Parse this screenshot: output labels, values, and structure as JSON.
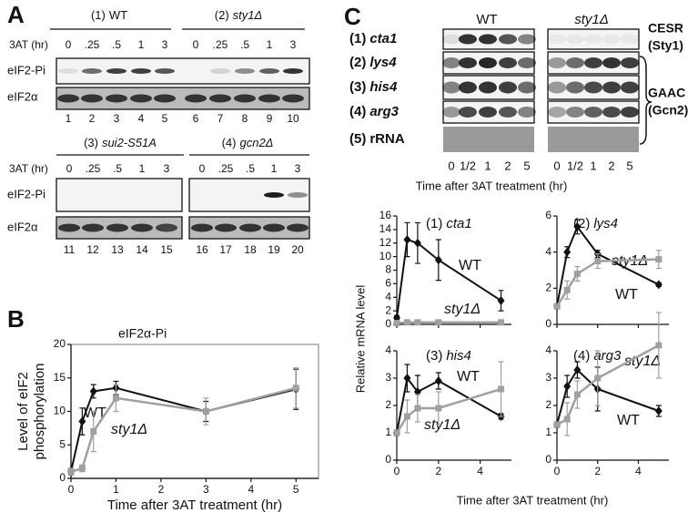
{
  "panel_a": {
    "label": "A",
    "time_label": "3AT (hr)",
    "times": [
      "0",
      ".25",
      ".5",
      "1",
      "3"
    ],
    "rows": [
      "eIF2-Pi",
      "eIF2α"
    ],
    "groups": [
      {
        "num": "(1)",
        "name": "WT"
      },
      {
        "num": "(2)",
        "name": "sty1Δ"
      },
      {
        "num": "(3)",
        "name": "sui2-S51A"
      },
      {
        "num": "(4)",
        "name": "gcn2Δ"
      }
    ],
    "lanes_top": [
      1,
      2,
      3,
      4,
      5,
      6,
      7,
      8,
      9,
      10
    ],
    "lanes_bottom": [
      11,
      12,
      13,
      14,
      15,
      16,
      17,
      18,
      19,
      20
    ]
  },
  "panel_b": {
    "label": "B"
  },
  "panel_c": {
    "label": "C",
    "strains": [
      "WT",
      "sty1Δ"
    ],
    "genes": [
      {
        "num": "(1)",
        "name": "cta1"
      },
      {
        "num": "(2)",
        "name": "lys4"
      },
      {
        "num": "(3)",
        "name": "his4"
      },
      {
        "num": "(4)",
        "name": "arg3"
      },
      {
        "num": "(5)",
        "name": "rRNA"
      }
    ],
    "pathways": [
      [
        "CESR",
        "(Sty1)"
      ],
      [
        "GAAC",
        "(Gcn2)"
      ]
    ],
    "times": [
      "0",
      "1/2",
      "1",
      "2",
      "5"
    ],
    "time_axis": "Time after 3AT treatment (hr)",
    "ylabel": "Relative mRNA level",
    "xlabel": "Time after 3AT treatment (hr)"
  },
  "chart_data": [
    {
      "type": "line",
      "title": "eIF2α-Pi",
      "ylabel": [
        "Level of eIF2",
        "phosphorylation"
      ],
      "xlabel": "Time after 3AT treatment (hr)",
      "x": [
        0,
        0.25,
        0.5,
        1,
        3,
        5
      ],
      "xlim": [
        0,
        5.5
      ],
      "xticks": [
        0,
        1,
        2,
        3,
        4,
        5
      ],
      "ylim": [
        0,
        20
      ],
      "yticks": [
        0,
        5,
        10,
        15,
        20
      ],
      "annotations": [
        "WT",
        "sty1Δ"
      ],
      "series": [
        {
          "name": "WT",
          "color": "#111111",
          "values": [
            1,
            8.5,
            13,
            13.5,
            10,
            13.3
          ],
          "errors": [
            0.5,
            2,
            1,
            1,
            1.5,
            3
          ]
        },
        {
          "name": "sty1Δ",
          "color": "#a0a0a0",
          "values": [
            1,
            1.5,
            7,
            12,
            10,
            13.5
          ],
          "errors": [
            0.5,
            0.5,
            3,
            2,
            2,
            3
          ]
        }
      ]
    },
    {
      "type": "line",
      "panel": "(1)",
      "title": "cta1",
      "x": [
        0,
        0.5,
        1,
        2,
        5
      ],
      "xlim": [
        0,
        5.5
      ],
      "xticks": [
        0,
        2,
        4
      ],
      "ylim": [
        0,
        16
      ],
      "yticks": [
        0,
        2,
        4,
        6,
        8,
        10,
        12,
        14,
        16
      ],
      "annotations": [
        "WT",
        "sty1Δ"
      ],
      "series": [
        {
          "name": "WT",
          "color": "#111111",
          "values": [
            1,
            12.5,
            12,
            9.5,
            3.5
          ],
          "errors": [
            0.3,
            2.5,
            3,
            3,
            1.5
          ]
        },
        {
          "name": "sty1Δ",
          "color": "#a0a0a0",
          "values": [
            0.2,
            0.3,
            0.3,
            0.3,
            0.3
          ],
          "errors": [
            0.1,
            0.1,
            0.1,
            0.1,
            0.1
          ]
        }
      ]
    },
    {
      "type": "line",
      "panel": "(2)",
      "title": "lys4",
      "x": [
        0,
        0.5,
        1,
        2,
        5
      ],
      "xlim": [
        0,
        5.5
      ],
      "xticks": [
        0,
        2,
        4
      ],
      "ylim": [
        0,
        6
      ],
      "yticks": [
        0,
        2,
        4,
        6
      ],
      "annotations": [
        "sty1Δ",
        "WT"
      ],
      "series": [
        {
          "name": "WT",
          "color": "#111111",
          "values": [
            1,
            4,
            5.4,
            3.9,
            2.2
          ],
          "errors": [
            0.1,
            0.3,
            0.4,
            0.2,
            0.1
          ]
        },
        {
          "name": "sty1Δ",
          "color": "#a0a0a0",
          "values": [
            1,
            1.9,
            2.8,
            3.5,
            3.6
          ],
          "errors": [
            0.1,
            0.5,
            0.4,
            0.4,
            0.5
          ]
        }
      ]
    },
    {
      "type": "line",
      "panel": "(3)",
      "title": "his4",
      "x": [
        0,
        0.5,
        1,
        2,
        5
      ],
      "xlim": [
        0,
        5.5
      ],
      "xticks": [
        0,
        2,
        4
      ],
      "ylim": [
        0,
        4
      ],
      "yticks": [
        0,
        1,
        2,
        3,
        4
      ],
      "annotations": [
        "WT",
        "sty1Δ"
      ],
      "series": [
        {
          "name": "WT",
          "color": "#111111",
          "values": [
            1,
            3,
            2.5,
            2.9,
            1.6
          ],
          "errors": [
            0.1,
            0.5,
            0.6,
            0.3,
            0.1
          ]
        },
        {
          "name": "sty1Δ",
          "color": "#a0a0a0",
          "values": [
            1,
            1.6,
            1.9,
            1.9,
            2.6
          ],
          "errors": [
            0.1,
            0.6,
            0.5,
            0.6,
            1
          ]
        }
      ]
    },
    {
      "type": "line",
      "panel": "(4)",
      "title": "arg3",
      "x": [
        0,
        0.5,
        1,
        2,
        5
      ],
      "xlim": [
        0,
        5.5
      ],
      "xticks": [
        0,
        2,
        4
      ],
      "ylim": [
        0,
        4
      ],
      "yticks": [
        0,
        1,
        2,
        3,
        4
      ],
      "annotations": [
        "sty1Δ",
        "WT"
      ],
      "series": [
        {
          "name": "WT",
          "color": "#111111",
          "values": [
            1.3,
            2.7,
            3.3,
            2.6,
            1.8
          ],
          "errors": [
            0.1,
            0.4,
            0.3,
            0.8,
            0.2
          ]
        },
        {
          "name": "sty1Δ",
          "color": "#a0a0a0",
          "values": [
            1.3,
            1.5,
            2.4,
            3,
            4.2
          ],
          "errors": [
            0.1,
            0.6,
            0.5,
            1,
            1.2
          ]
        }
      ]
    }
  ]
}
